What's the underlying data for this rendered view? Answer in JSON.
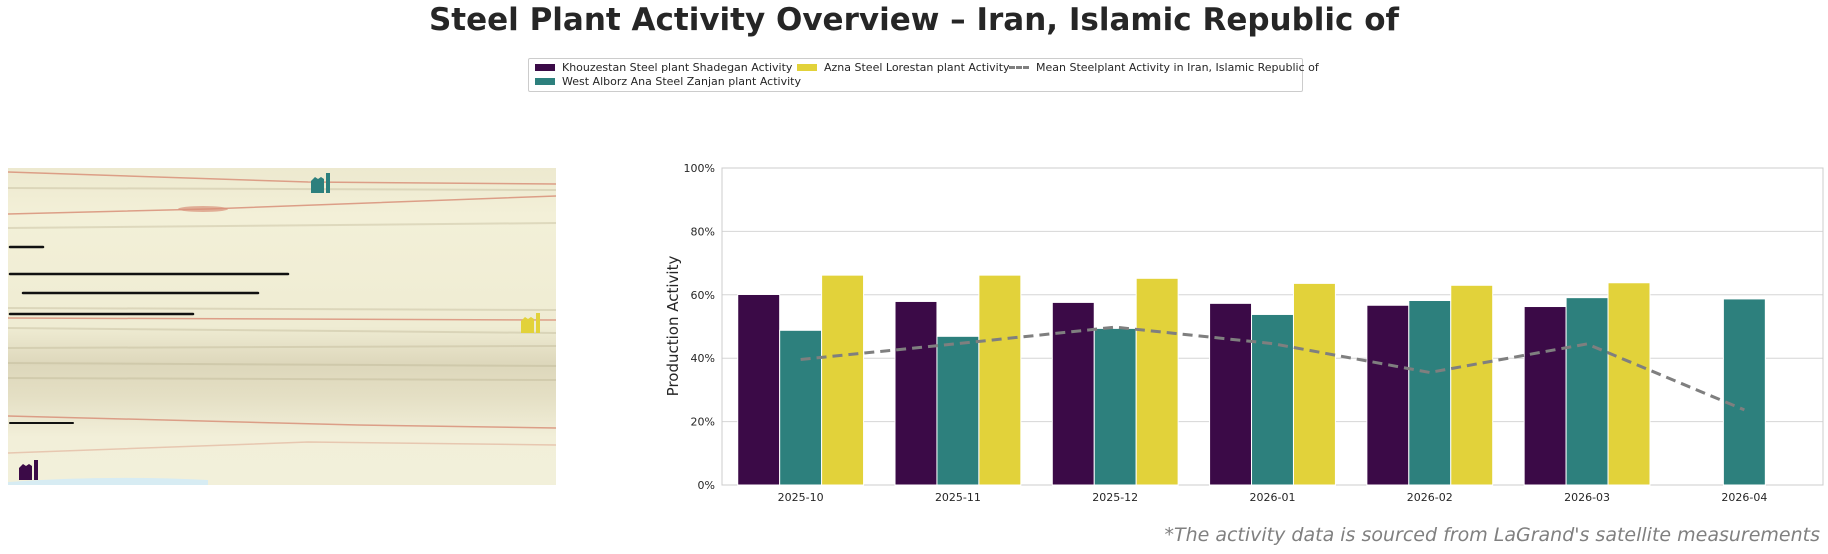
{
  "title": "Steel Plant Activity Overview – Iran, Islamic Republic of",
  "footnote": "*The activity data is sourced from LaGrand's satellite measurements",
  "legend": [
    {
      "label": "Khouzestan Steel plant Shadegan Activity",
      "color": "#3b0a47",
      "kind": "bar"
    },
    {
      "label": "West Alborz Ana Steel Zanjan plant Activity",
      "color": "#2d807d",
      "kind": "bar"
    },
    {
      "label": "Azna Steel Lorestan plant Activity",
      "color": "#e2d23a",
      "kind": "bar"
    },
    {
      "label": "Mean Steelplant Activity in Iran, Islamic Republic of",
      "color": "#7f7f7f",
      "kind": "dashed-line"
    }
  ],
  "map": {
    "markers": [
      {
        "icon": "factory-icon",
        "color": "#2d807d"
      },
      {
        "icon": "factory-icon",
        "color": "#e2d23a"
      },
      {
        "icon": "factory-icon",
        "color": "#3b0a47"
      }
    ]
  },
  "chart_data": {
    "type": "bar",
    "title": "",
    "xlabel": "",
    "ylabel": "Production Activity",
    "ylim": [
      0,
      100
    ],
    "yticks": [
      "0%",
      "20%",
      "40%",
      "60%",
      "80%",
      "100%"
    ],
    "grid": true,
    "legend_placement": "top-center",
    "categories": [
      "2025-10",
      "2025-11",
      "2025-12",
      "2026-01",
      "2026-02",
      "2026-03",
      "2026-04"
    ],
    "series": [
      {
        "name": "Khouzestan Steel plant Shadegan Activity",
        "color": "#3b0a47",
        "values": [
          60.1,
          57.9,
          57.6,
          57.3,
          56.7,
          56.3,
          null
        ]
      },
      {
        "name": "West Alborz Ana Steel Zanjan plant Activity",
        "color": "#2d807d",
        "values": [
          48.8,
          46.9,
          49.4,
          53.8,
          58.2,
          59.1,
          58.7
        ]
      },
      {
        "name": "Azna Steel Lorestan plant Activity",
        "color": "#e2d23a",
        "values": [
          66.2,
          66.2,
          65.2,
          63.6,
          63.0,
          63.8,
          null
        ]
      }
    ],
    "line": {
      "name": "Mean Steelplant Activity in Iran, Islamic Republic of",
      "color": "#7f7f7f",
      "style": "dashed",
      "values": [
        39.6,
        44.6,
        49.8,
        44.6,
        35.5,
        44.5,
        23.7
      ]
    }
  }
}
